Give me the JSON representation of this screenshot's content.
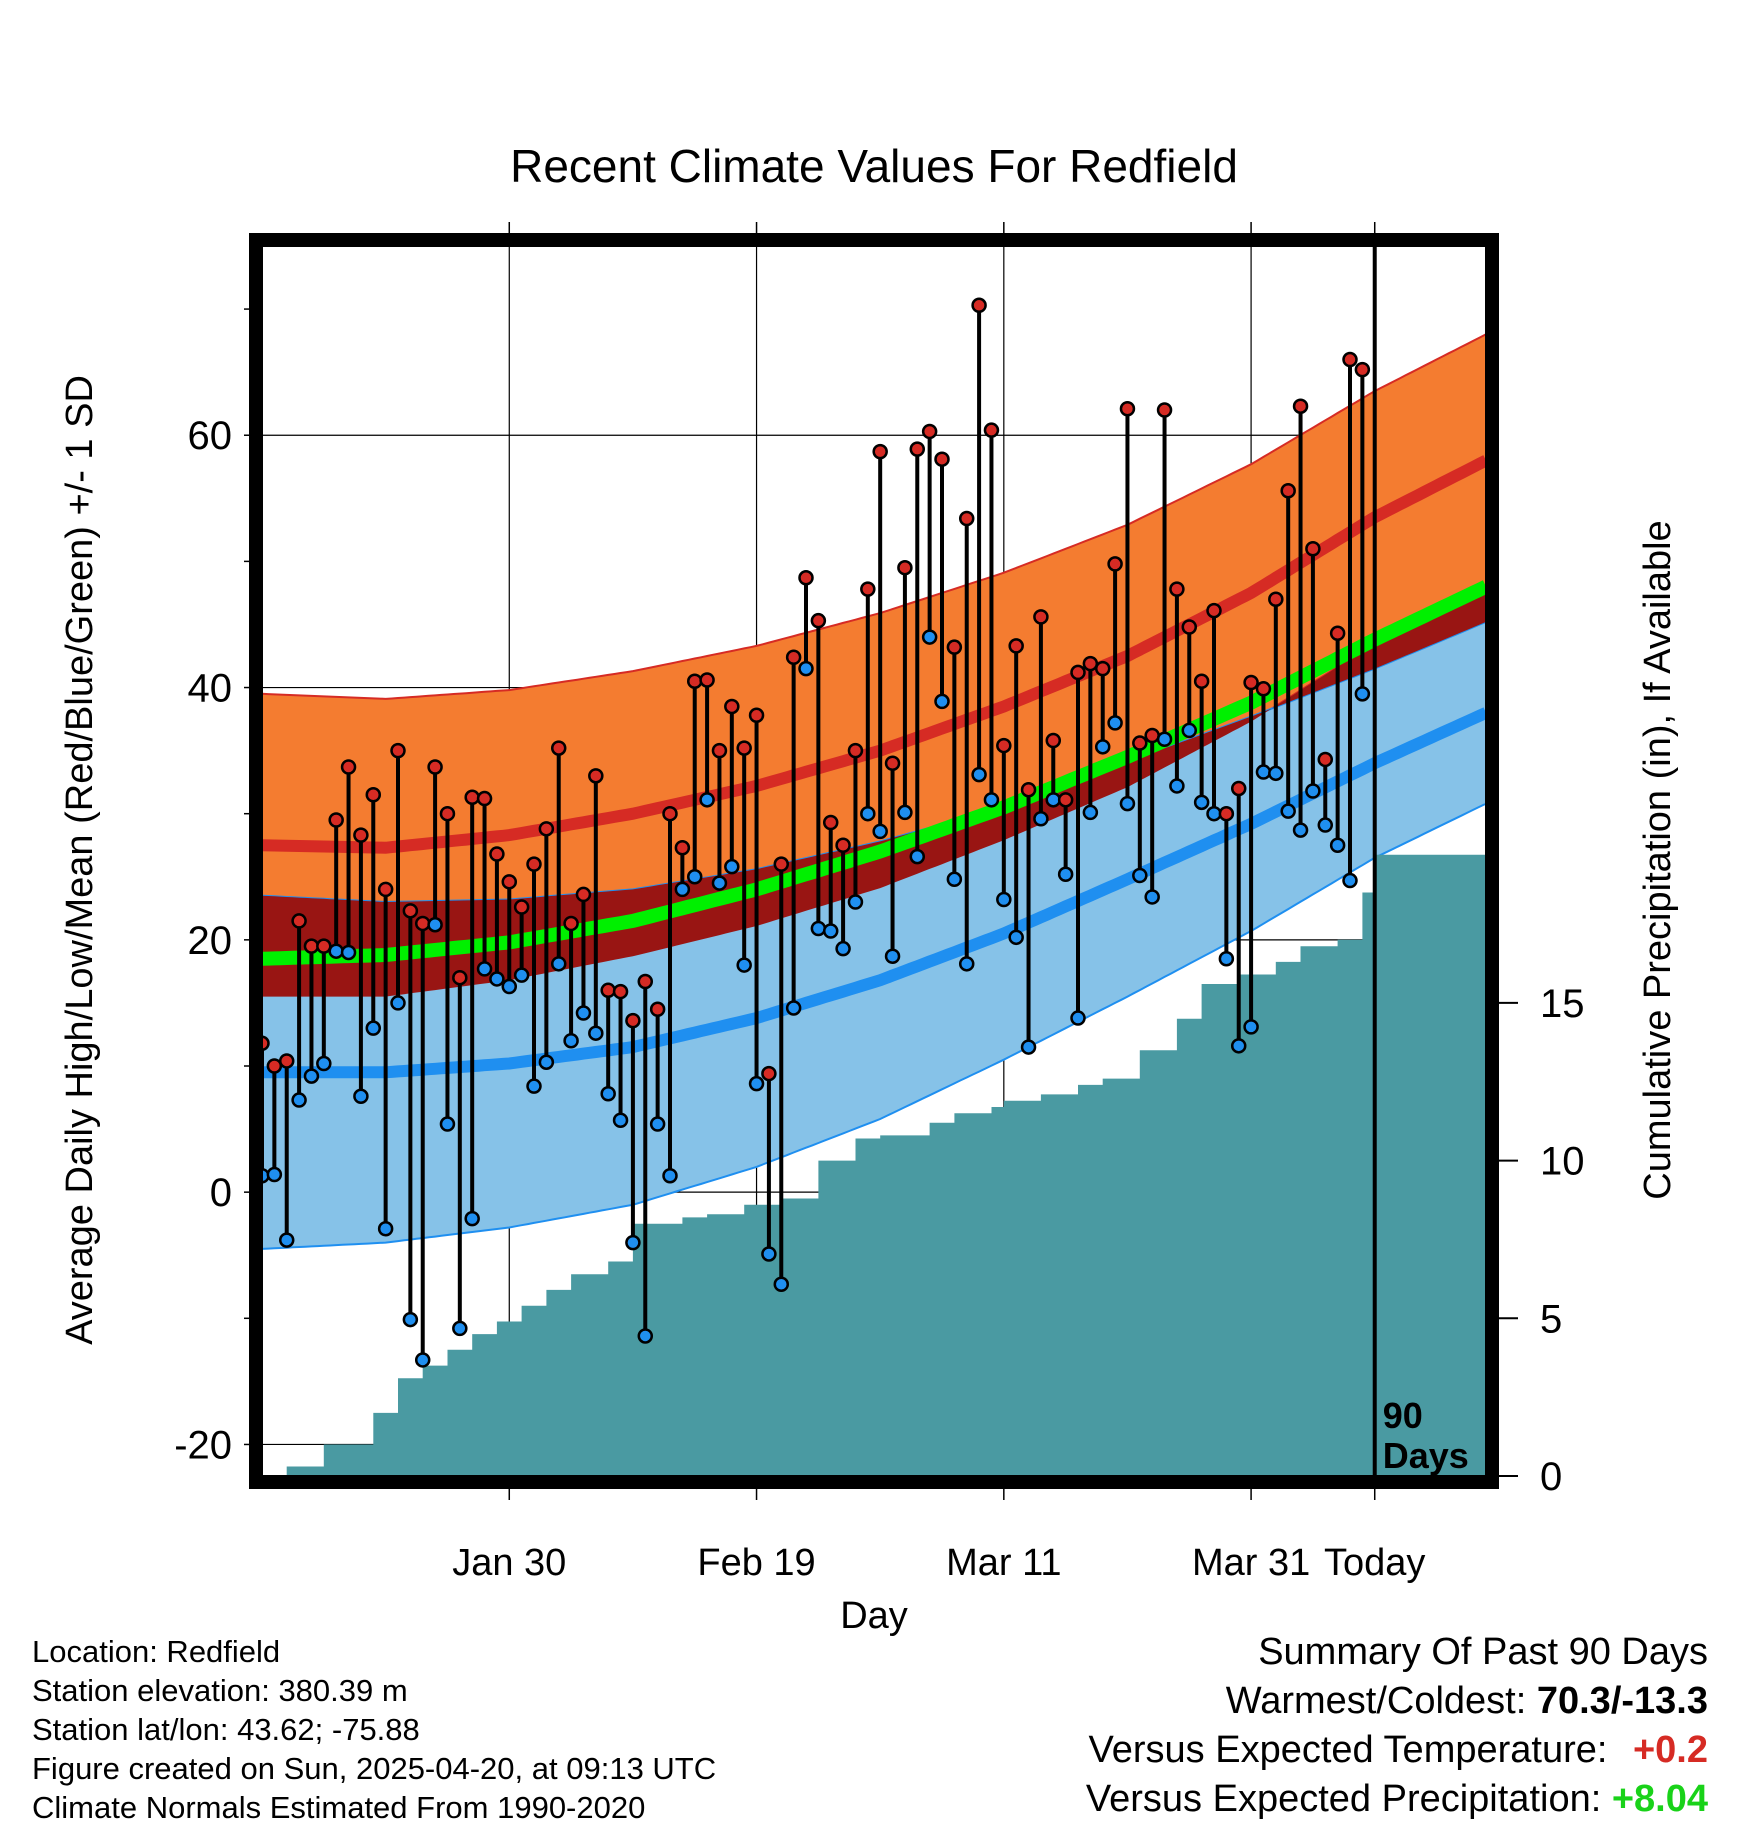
{
  "chart_data": {
    "type": "line",
    "title": "Recent Climate Values For Redfield",
    "xlabel": "Day",
    "ylabel": "Average Daily High/Low/Mean (Red/Blue/Green) +/- 1 SD",
    "y2label": "Cumulative Precipitation (in), If Available",
    "x_ticks": [
      "Jan 30",
      "Feb 19",
      "Mar 11",
      "Mar 31",
      "Today"
    ],
    "x_range_days": [
      -90,
      9
    ],
    "ylim": [
      -22.5,
      75
    ],
    "y_ticks": [
      -20,
      0,
      20,
      40,
      60
    ],
    "y2lim": [
      0,
      39
    ],
    "y2_ticks": [
      0,
      5,
      10,
      15
    ],
    "today_label": [
      "90",
      "Days"
    ],
    "colors": {
      "high_band": "#f47c30",
      "high_line": "#d62b24",
      "high_band_edge": "#d62b24",
      "low_band": "#86c2e8",
      "low_line": "#1f8ff0",
      "low_band_edge": "#1f8ff0",
      "overlap": "#991513",
      "mean_line": "#00f000",
      "precip": "#4a9aa2",
      "dot_high": "#d62b24",
      "dot_low": "#1f8ff0"
    },
    "normals": {
      "day": [
        -90,
        -80,
        -70,
        -60,
        -50,
        -40,
        -30,
        -20,
        -10,
        0,
        9
      ],
      "high_mean": [
        27.5,
        27.3,
        28.3,
        30.0,
        32.2,
        35.0,
        38.5,
        42.5,
        47.5,
        53.5,
        58.0
      ],
      "high_sd": [
        12.0,
        11.8,
        11.5,
        11.3,
        11.1,
        10.9,
        10.6,
        10.4,
        10.2,
        10.0,
        10.0
      ],
      "low_mean": [
        9.5,
        9.5,
        10.2,
        11.5,
        13.8,
        16.8,
        20.5,
        24.8,
        29.2,
        34.0,
        38.0
      ],
      "low_sd": [
        14.0,
        13.5,
        13.0,
        12.5,
        11.8,
        11.0,
        10.0,
        9.3,
        8.5,
        7.5,
        7.2
      ],
      "mean": [
        18.5,
        18.8,
        19.8,
        21.5,
        24.0,
        27.0,
        30.5,
        34.5,
        38.8,
        43.8,
        48.0
      ]
    },
    "daily_high": [
      11.8,
      10.0,
      10.4,
      21.5,
      19.5,
      19.5,
      29.5,
      33.7,
      28.3,
      31.5,
      24.0,
      35.0,
      22.3,
      21.3,
      33.7,
      30.0,
      17.0,
      31.3,
      31.2,
      26.8,
      24.6,
      22.6,
      26.0,
      28.8,
      35.2,
      21.3,
      23.6,
      33.0,
      16.0,
      15.9,
      13.6,
      16.7,
      14.5,
      30.0,
      27.3,
      40.5,
      40.6,
      35.0,
      38.5,
      35.2,
      37.8,
      9.4,
      26.0,
      42.4,
      48.7,
      45.3,
      29.3,
      27.5,
      35.0,
      47.8,
      58.7,
      34.0,
      49.5,
      58.9,
      60.3,
      58.1,
      43.2,
      53.4,
      70.3,
      60.4,
      35.4,
      43.3,
      31.9,
      45.6,
      35.8,
      31.1,
      41.2,
      41.9,
      41.5,
      49.8,
      62.1,
      35.6,
      36.2,
      62.0,
      47.8,
      44.8,
      40.5,
      46.1,
      30.0,
      32.0,
      40.4,
      39.9,
      47.0,
      55.6,
      62.3,
      51.0,
      34.3,
      44.3,
      66.0,
      65.2
    ],
    "daily_low": [
      1.3,
      1.4,
      -3.8,
      7.3,
      9.2,
      10.2,
      19.1,
      19.0,
      7.6,
      13.0,
      -2.9,
      15.0,
      -10.1,
      -13.3,
      21.2,
      5.4,
      -10.8,
      -2.1,
      17.7,
      16.9,
      16.3,
      17.2,
      8.4,
      10.3,
      18.1,
      12.0,
      14.2,
      12.6,
      7.8,
      5.7,
      -4.0,
      -11.4,
      5.4,
      1.3,
      24.0,
      25.0,
      31.1,
      24.5,
      25.8,
      18.0,
      8.6,
      -4.9,
      -7.3,
      14.6,
      41.5,
      20.9,
      20.7,
      19.3,
      23.0,
      30.0,
      28.6,
      18.7,
      30.1,
      26.6,
      44.0,
      38.9,
      24.8,
      18.1,
      33.1,
      31.1,
      23.2,
      20.2,
      11.5,
      29.6,
      31.1,
      25.2,
      13.8,
      30.1,
      35.3,
      37.2,
      30.8,
      25.1,
      23.4,
      35.9,
      32.2,
      36.6,
      30.9,
      30.0,
      18.5,
      11.6,
      13.1,
      33.3,
      33.2,
      30.2,
      28.7,
      31.8,
      29.1,
      27.5,
      24.7,
      39.5
    ],
    "cumulative_precip_days": [
      -88,
      -85,
      -81,
      -79,
      -77,
      -75,
      -73,
      -71,
      -69,
      -67,
      -65,
      -62,
      -60,
      -56,
      -54,
      -51,
      -48,
      -45,
      -42,
      -40,
      -36,
      -34,
      -31,
      -30,
      -27,
      -24,
      -22,
      -19,
      -16,
      -14,
      -11,
      -8,
      -6,
      -3,
      -1,
      0,
      9
    ],
    "cumulative_precip": [
      0.3,
      1.0,
      2.0,
      3.1,
      3.5,
      4.0,
      4.5,
      4.9,
      5.4,
      5.9,
      6.4,
      6.8,
      8.0,
      8.2,
      8.3,
      8.6,
      8.8,
      10.0,
      10.7,
      10.8,
      11.2,
      11.5,
      11.7,
      11.9,
      12.1,
      12.4,
      12.6,
      13.5,
      14.5,
      15.6,
      15.9,
      16.3,
      16.8,
      17.0,
      18.5,
      19.7,
      19.7
    ]
  },
  "info": {
    "location": "Location: Redfield",
    "elevation": "Station elevation: 380.39 m",
    "latlon": "Station lat/lon: 43.62; -75.88",
    "created": "Figure created on Sun, 2025-04-20, at 09:13 UTC",
    "normals": "Climate Normals Estimated From 1990-2020"
  },
  "summary": {
    "heading": "Summary Of Past 90 Days",
    "warm_cold_label": "Warmest/Coldest: ",
    "warm_cold_value": "70.3/-13.3",
    "temp_label": "Versus Expected Temperature:",
    "temp_value": "+0.2",
    "temp_color": "#d62b24",
    "precip_label": "Versus Expected Precipitation:",
    "precip_value": "+8.04",
    "precip_color": "#19d219"
  }
}
